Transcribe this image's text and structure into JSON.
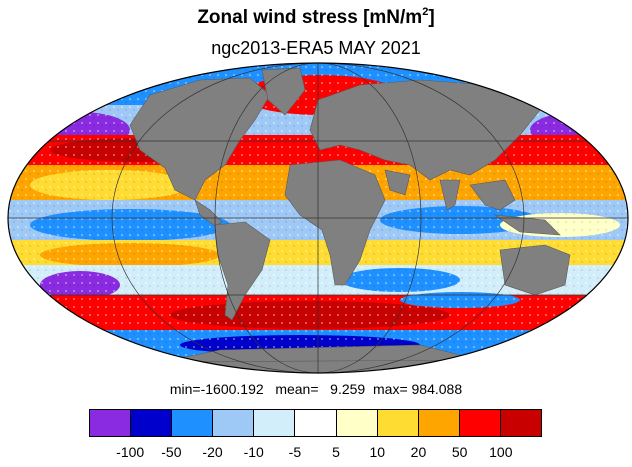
{
  "title": "Zonal wind stress [mN/m",
  "title_sup": "2",
  "title_close": "]",
  "subtitle": "ngc2013-ERA5  MAY 2021",
  "stats": "min=-1600.192   mean=   9.259  max= 984.088",
  "map": {
    "projection": "mollweide",
    "land_color": "#808080",
    "ocean_field": "zonal wind stress"
  },
  "colorbar": {
    "colors": [
      "#8a2be2",
      "#0000cd",
      "#1e90ff",
      "#9ec8f5",
      "#d2eefa",
      "#ffffff",
      "#ffffc8",
      "#ffdc32",
      "#ffa500",
      "#ff0000",
      "#c80000"
    ],
    "labels": [
      "-100",
      "-50",
      "-20",
      "-10",
      "-5",
      "5",
      "10",
      "20",
      "50",
      "100"
    ]
  }
}
